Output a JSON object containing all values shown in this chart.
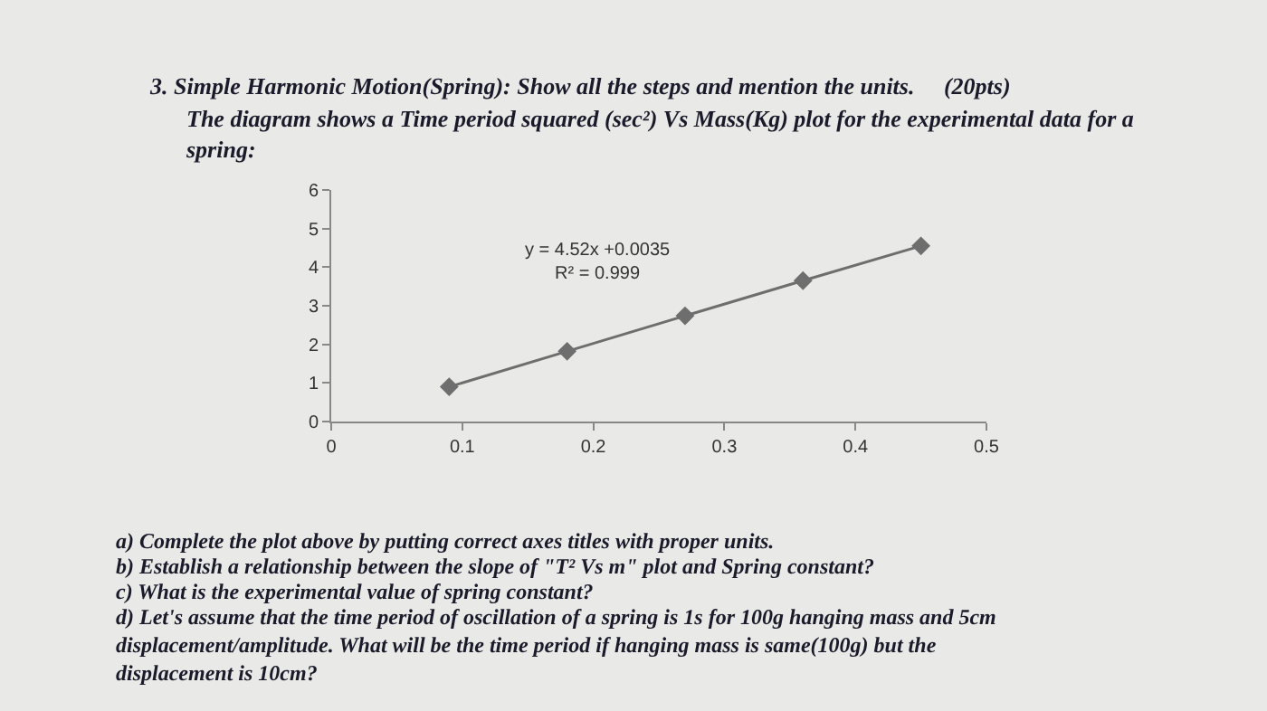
{
  "chart_data": {
    "type": "line",
    "title": "3. Simple Harmonic Motion(Spring): Show all the steps and mention the units.     (20pts)",
    "subtitle": "The diagram shows a Time period squared (sec²) Vs Mass(Kg) plot for the experimental data for a spring:",
    "x": [
      0.09,
      0.18,
      0.27,
      0.36,
      0.45
    ],
    "series": [
      {
        "color": "#6e6e6e",
        "values": [
          0.9,
          1.82,
          2.74,
          3.65,
          4.55
        ]
      }
    ],
    "xlim": [
      0,
      0.5
    ],
    "xticks": [
      0,
      0.1,
      0.2,
      0.3,
      0.4,
      0.5
    ],
    "ylim": [
      0,
      6
    ],
    "yticks": [
      0,
      1,
      2,
      3,
      4,
      5,
      6
    ],
    "grid": false,
    "marker": "diamond",
    "line_style": "solid",
    "annotations": [
      "y = 4.52x +0.0035\nR² = 0.999",
      "a) Complete the plot above by putting correct axes titles with proper units.",
      "b) Establish a relationship between the slope of \"T² Vs m\" plot and Spring constant?",
      "c) What is the experimental value of spring constant?",
      "d) Let's assume that the time period of oscillation of a spring is 1s for 100g hanging mass and 5cm displacement/amplitude. What will be the time period if hanging mass is same(100g) but the displacement is 10cm?"
    ]
  }
}
